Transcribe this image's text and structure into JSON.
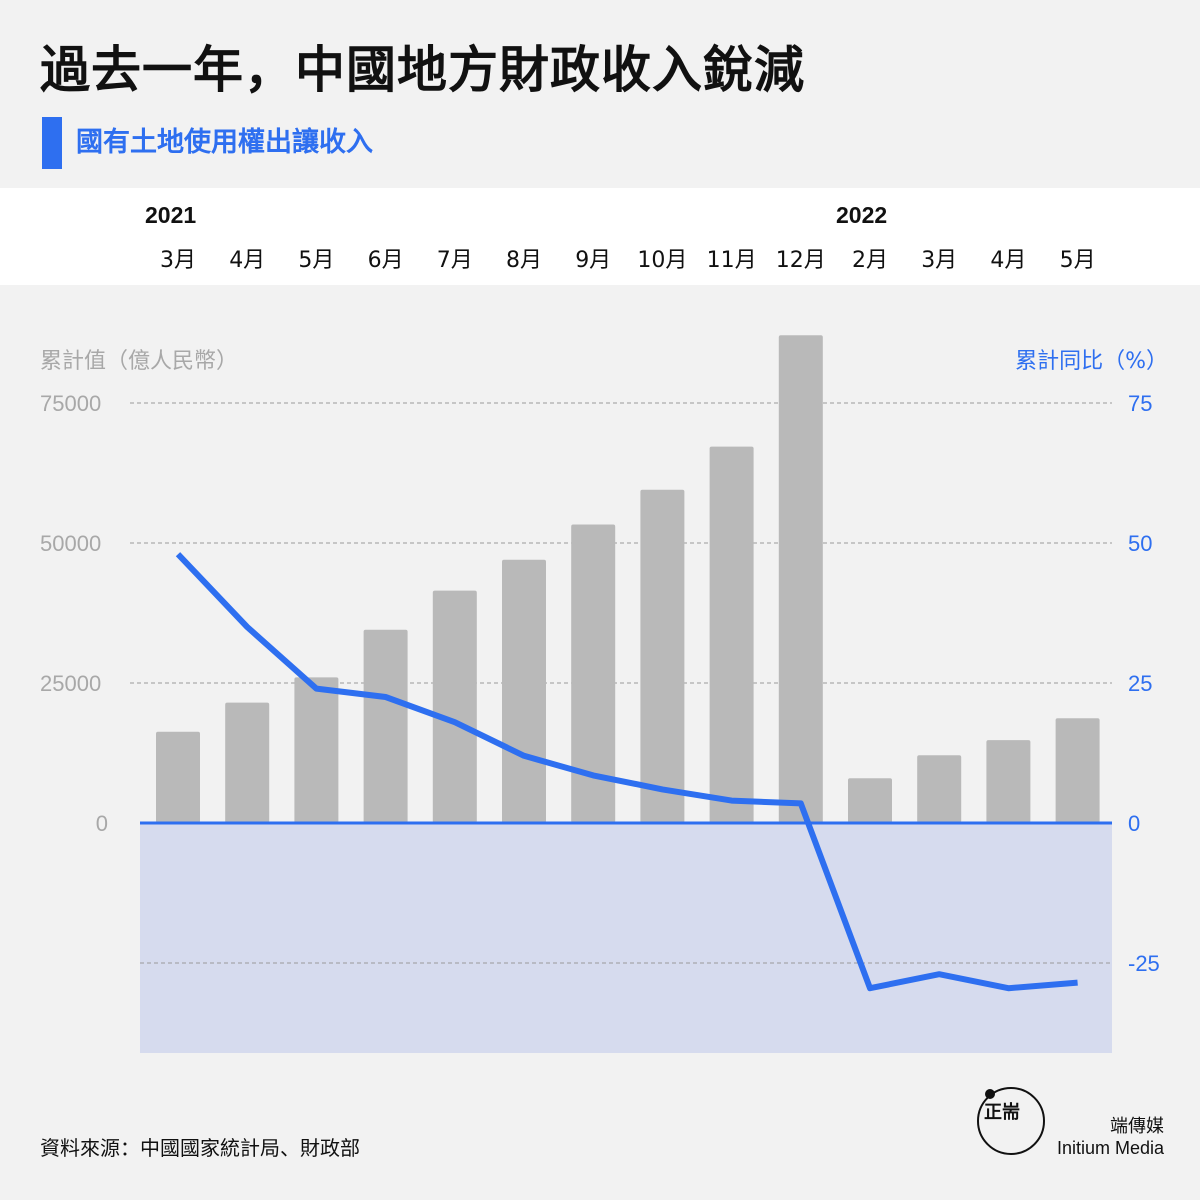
{
  "header": {
    "title": "過去一年，中國地方財政收入銳減",
    "subtitle": "國有土地使用權出讓收入"
  },
  "timeline": {
    "year_2021": "2021",
    "year_2022": "2022",
    "months": [
      "3月",
      "4月",
      "5月",
      "6月",
      "7月",
      "8月",
      "9月",
      "10月",
      "11月",
      "12月",
      "2月",
      "3月",
      "4月",
      "5月"
    ]
  },
  "colors": {
    "accent": "#2e6ff0",
    "bar": "#b9b9b9",
    "negative_zone": "#d6dbee",
    "background": "#f2f2f2"
  },
  "chart_data": {
    "type": "bar",
    "categories": [
      "3月",
      "4月",
      "5月",
      "6月",
      "7月",
      "8月",
      "9月",
      "10月",
      "11月",
      "12月",
      "2月",
      "3月",
      "4月",
      "5月"
    ],
    "series": [
      {
        "name": "累計值（億人民幣）",
        "type": "bar",
        "axis": "left",
        "values": [
          16300,
          21500,
          26000,
          34500,
          41500,
          47000,
          53300,
          59500,
          67200,
          87100,
          8000,
          12100,
          14800,
          18700
        ]
      },
      {
        "name": "累計同比（%）",
        "type": "line",
        "axis": "right",
        "values": [
          48,
          35,
          24,
          22.5,
          18,
          12,
          8.5,
          6,
          4,
          3.5,
          -29.5,
          -27,
          -29.5,
          -28.5
        ]
      }
    ],
    "left_axis": {
      "label": "累計值（億人民幣）",
      "ticks": [
        0,
        25000,
        50000,
        75000
      ],
      "tick_labels": [
        "0",
        "25000",
        "50000",
        "75000"
      ],
      "range": [
        -41000,
        87100
      ]
    },
    "right_axis": {
      "label": "累計同比（%）",
      "ticks": [
        -25,
        0,
        25,
        50,
        75
      ],
      "tick_labels": [
        "-25",
        "0",
        "25",
        "50",
        "75"
      ],
      "range": [
        -41,
        87.1
      ]
    },
    "grid": true
  },
  "footer": {
    "source": "資料來源：中國國家統計局、財政部",
    "brand_cn": "端傳媒",
    "brand_en": "Initium Media",
    "logo_glyph": "正耑"
  }
}
